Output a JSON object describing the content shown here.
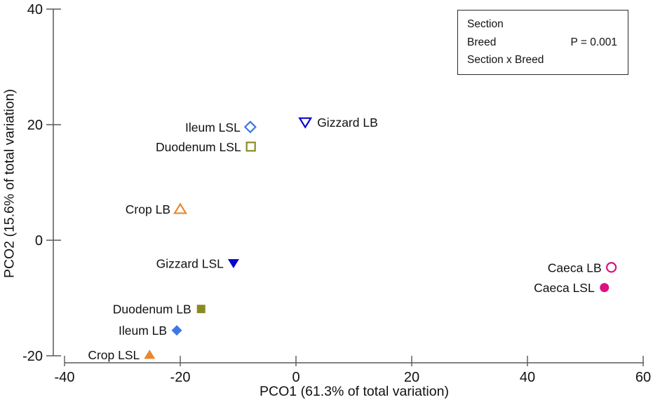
{
  "figure": {
    "background": "#ffffff",
    "axis_line_color": "#595959",
    "text_color": "#111111"
  },
  "chart_data": {
    "type": "scatter",
    "title": "",
    "xlabel": "PCO1 (61.3% of total variation)",
    "ylabel": "PCO2 (15.6% of total variation)",
    "xlim": [
      -40,
      60
    ],
    "ylim": [
      -20,
      40
    ],
    "xticks": [
      -40,
      -20,
      0,
      20,
      40,
      60
    ],
    "yticks": [
      40,
      20,
      0,
      -20
    ],
    "grid": false,
    "legend_position": "top-right",
    "series_colors": {
      "crop": "#E9872E",
      "gizzard": "#0808CC",
      "duodenum": "#8A8A25",
      "ileum": "#3E78E6",
      "caeca": "#DE0F7F"
    },
    "points": [
      {
        "label": "Ileum LSL",
        "x": -7.9,
        "y": 19.6,
        "shape": "diamond",
        "filled": false,
        "color": "#3E78E6",
        "label_side": "left"
      },
      {
        "label": "Duodenum LSL",
        "x": -7.8,
        "y": 16.2,
        "shape": "square",
        "filled": false,
        "color": "#8A8A25",
        "label_side": "left"
      },
      {
        "label": "Gizzard LB",
        "x": 1.6,
        "y": 20.4,
        "shape": "triangle-down",
        "filled": false,
        "color": "#0808CC",
        "label_side": "right"
      },
      {
        "label": "Crop LB",
        "x": -20.0,
        "y": 5.4,
        "shape": "triangle-up",
        "filled": false,
        "color": "#E9872E",
        "label_side": "left"
      },
      {
        "label": "Gizzard LSL",
        "x": -10.8,
        "y": -4.0,
        "shape": "triangle-down",
        "filled": true,
        "color": "#0808CC",
        "label_side": "left"
      },
      {
        "label": "Caeca LB",
        "x": 54.5,
        "y": -4.7,
        "shape": "circle",
        "filled": false,
        "color": "#DE0F7F",
        "label_side": "left"
      },
      {
        "label": "Caeca LSL",
        "x": 53.3,
        "y": -8.2,
        "shape": "circle",
        "filled": true,
        "color": "#DE0F7F",
        "label_side": "left"
      },
      {
        "label": "Duodenum LB",
        "x": -16.4,
        "y": -11.9,
        "shape": "square",
        "filled": true,
        "color": "#8A8A25",
        "label_side": "left"
      },
      {
        "label": "Ileum LB",
        "x": -20.6,
        "y": -15.6,
        "shape": "diamond",
        "filled": true,
        "color": "#3E78E6",
        "label_side": "left"
      },
      {
        "label": "Crop LSL",
        "x": -25.3,
        "y": -19.8,
        "shape": "triangle-up",
        "filled": true,
        "color": "#E9872E",
        "label_side": "left"
      }
    ],
    "stats_box": {
      "rows": [
        {
          "term": "Section",
          "p_value": ""
        },
        {
          "term": "Breed",
          "p_value": "P = 0.001"
        },
        {
          "term": "Section x Breed",
          "p_value": ""
        }
      ]
    }
  }
}
